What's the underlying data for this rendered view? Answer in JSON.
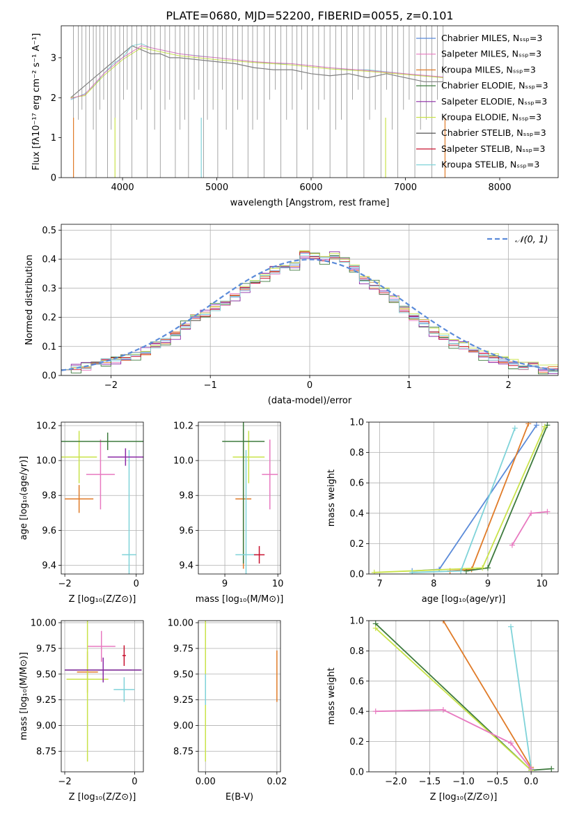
{
  "figure_title": "PLATE=0680, MJD=52200, FIBERID=0055, z=0.101",
  "chart_data": [
    {
      "type": "line",
      "id": "spectrum",
      "title": "PLATE=0680, MJD=52200, FIBERID=0055, z=0.101",
      "xlabel": "wavelength [Angstrom, rest frame]",
      "ylabel": "Flux [fλ10⁻¹⁷ erg cm⁻² s⁻¹ A⁻¹]",
      "xlim": [
        3350,
        8620
      ],
      "ylim": [
        0,
        3.8
      ],
      "xticks": [
        4000,
        5000,
        6000,
        7000,
        8000
      ],
      "yticks": [
        0,
        1,
        2,
        3
      ],
      "grid": false,
      "legend_position": "right",
      "legend": [
        {
          "label": "Chabrier MILES, Nₛₛₚ=3",
          "color": "#5b8bd9"
        },
        {
          "label": "Salpeter MILES, Nₛₛₚ=3",
          "color": "#e879c0"
        },
        {
          "label": "Kroupa MILES, Nₛₛₚ=3",
          "color": "#e07b28"
        },
        {
          "label": "Chabrier ELODIE, Nₛₛₚ=3",
          "color": "#3d7a3d"
        },
        {
          "label": "Salpeter ELODIE, Nₛₛₚ=3",
          "color": "#8b2aa6"
        },
        {
          "label": "Kroupa ELODIE, Nₛₛₚ=3",
          "color": "#c9e34a"
        },
        {
          "label": "Chabrier STELIB, Nₛₛₚ=3",
          "color": "#404040"
        },
        {
          "label": "Salpeter STELIB, Nₛₛₚ=3",
          "color": "#c8102e"
        },
        {
          "label": "Kroupa STELIB, Nₛₛₚ=3",
          "color": "#7fd3d9"
        }
      ],
      "series": [
        {
          "color": "#808080",
          "x": [
            3450,
            3500,
            3600,
            3700,
            3800,
            3900,
            4000,
            4100,
            4200,
            4300,
            4400,
            4500,
            4600,
            4800,
            5000,
            5200,
            5400,
            5600,
            5800,
            6000,
            6200,
            6400,
            6600,
            6800,
            7000,
            7200,
            7400
          ],
          "y": [
            2.0,
            2.1,
            2.3,
            2.5,
            2.7,
            2.9,
            3.1,
            3.3,
            3.2,
            3.1,
            3.1,
            3.0,
            3.0,
            2.95,
            2.9,
            2.85,
            2.75,
            2.7,
            2.7,
            2.6,
            2.55,
            2.6,
            2.5,
            2.6,
            2.5,
            2.4,
            2.4
          ]
        },
        {
          "color": "#7fd3d9",
          "x": [
            3450,
            3500,
            3600,
            3700,
            3800,
            3900,
            4000,
            4100,
            4200,
            4300,
            4400,
            4500,
            4600,
            4800,
            5000,
            5200,
            5400,
            5600,
            5800,
            6000,
            6200,
            6400,
            6600,
            6800,
            7000,
            7200,
            7400
          ],
          "y": [
            1.95,
            2.0,
            2.1,
            2.3,
            2.6,
            2.85,
            3.0,
            3.3,
            3.35,
            3.25,
            3.2,
            3.15,
            3.1,
            3.05,
            3.0,
            2.95,
            2.9,
            2.85,
            2.85,
            2.8,
            2.75,
            2.7,
            2.7,
            2.65,
            2.6,
            2.55,
            2.5
          ]
        },
        {
          "color": "#c9e34a",
          "x": [
            3450,
            3600,
            3800,
            4000,
            4200,
            4400,
            4600,
            4800,
            5000,
            5400,
            5800,
            6200,
            6600,
            7000,
            7400
          ],
          "y": [
            2.0,
            2.05,
            2.55,
            2.95,
            3.25,
            3.15,
            3.05,
            3.0,
            2.95,
            2.88,
            2.82,
            2.72,
            2.66,
            2.58,
            2.5
          ]
        },
        {
          "color": "#e879c0",
          "x": [
            3450,
            3600,
            3800,
            4000,
            4200,
            4400,
            4600,
            4800,
            5000,
            5400,
            5800,
            6200,
            6600,
            7000,
            7400
          ],
          "y": [
            1.98,
            2.08,
            2.6,
            3.0,
            3.3,
            3.2,
            3.1,
            3.04,
            3.0,
            2.9,
            2.85,
            2.75,
            2.68,
            2.6,
            2.52
          ]
        }
      ]
    },
    {
      "type": "line",
      "id": "residuals",
      "xlabel": "(data-model)/error",
      "ylabel": "Normed distribution",
      "xlim": [
        -2.5,
        2.5
      ],
      "ylim": [
        0,
        0.52
      ],
      "xticks": [
        -2,
        -1,
        0,
        1,
        2
      ],
      "yticks": [
        0.0,
        0.1,
        0.2,
        0.3,
        0.4,
        0.5
      ],
      "grid": true,
      "legend_position": "top-right",
      "legend": [
        {
          "label": "𝒩(0, 1)",
          "color": "#5b8bd9",
          "style": "dashed"
        }
      ],
      "bin_edges_from": -2.5,
      "bin_width": 0.1,
      "histogram_hist_colors": [
        "#5b8bd9",
        "#e879c0",
        "#e07b28",
        "#3d7a3d",
        "#8b2aa6",
        "#c9e34a",
        "#c8102e",
        "#7fd3d9"
      ],
      "histogram_values": [
        0.02,
        0.025,
        0.03,
        0.04,
        0.05,
        0.055,
        0.06,
        0.07,
        0.08,
        0.1,
        0.12,
        0.14,
        0.17,
        0.2,
        0.21,
        0.23,
        0.25,
        0.27,
        0.3,
        0.32,
        0.34,
        0.36,
        0.37,
        0.38,
        0.42,
        0.41,
        0.4,
        0.41,
        0.39,
        0.37,
        0.33,
        0.31,
        0.29,
        0.26,
        0.22,
        0.2,
        0.18,
        0.15,
        0.13,
        0.11,
        0.1,
        0.08,
        0.07,
        0.06,
        0.05,
        0.04,
        0.03,
        0.03,
        0.02,
        0.02
      ]
    },
    {
      "type": "scatter",
      "id": "age-vs-z",
      "xlabel": "Z [log₁₀(Z/Z⊙)]",
      "ylabel": "age  [log₁₀(age/yr)]",
      "xlim": [
        -2.1,
        0.2
      ],
      "ylim": [
        9.35,
        10.22
      ],
      "xticks": [
        -2,
        0
      ],
      "yticks": [
        9.4,
        9.6,
        9.8,
        10.0,
        10.2
      ],
      "grid": true,
      "points": [
        {
          "x": -1.0,
          "y": 9.92,
          "xerr": 0.4,
          "yerr": 0.2,
          "color": "#e879c0"
        },
        {
          "x": -1.6,
          "y": 9.78,
          "xerr": 0.4,
          "yerr": 0.08,
          "color": "#e07b28"
        },
        {
          "x": -1.6,
          "y": 10.02,
          "xerr": 0.5,
          "yerr": 0.15,
          "color": "#c9e34a"
        },
        {
          "x": -0.8,
          "y": 10.11,
          "xerr": 1.3,
          "yerr": 0.05,
          "color": "#3d7a3d"
        },
        {
          "x": -0.2,
          "y": 9.46,
          "xerr": 0.2,
          "yerr": 0.6,
          "color": "#7fd3d9"
        },
        {
          "x": -0.3,
          "y": 10.02,
          "xerr": 0.5,
          "yerr": 0.05,
          "color": "#8b2aa6"
        }
      ]
    },
    {
      "type": "scatter",
      "id": "age-vs-mass",
      "xlabel": "mass [log₁₀(M/M⊙)]",
      "xlim": [
        8.5,
        10.05
      ],
      "ylim": [
        9.35,
        10.22
      ],
      "xticks": [
        9,
        10
      ],
      "yticks": [
        9.4,
        9.6,
        9.8,
        10.0,
        10.2
      ],
      "grid": true,
      "points": [
        {
          "x": 9.85,
          "y": 9.92,
          "xerr": 0.15,
          "yerr": 0.2,
          "color": "#e879c0"
        },
        {
          "x": 9.35,
          "y": 9.78,
          "xerr": 0.15,
          "yerr": 0.4,
          "color": "#e07b28"
        },
        {
          "x": 9.45,
          "y": 10.02,
          "xerr": 0.3,
          "yerr": 0.15,
          "color": "#c9e34a"
        },
        {
          "x": 9.35,
          "y": 10.11,
          "xerr": 0.4,
          "yerr": 0.7,
          "color": "#3d7a3d"
        },
        {
          "x": 9.4,
          "y": 9.46,
          "xerr": 0.2,
          "yerr": 0.6,
          "color": "#7fd3d9"
        },
        {
          "x": 9.65,
          "y": 9.46,
          "xerr": 0.1,
          "yerr": 0.05,
          "color": "#c8102e"
        }
      ]
    },
    {
      "type": "line",
      "id": "mass-weight-vs-age",
      "xlabel": "age  [log₁₀(age/yr)]",
      "ylabel": "mass weight",
      "xlim": [
        6.8,
        10.3
      ],
      "ylim": [
        0,
        1
      ],
      "xticks": [
        7,
        8,
        9,
        10
      ],
      "yticks": [
        0.0,
        0.2,
        0.4,
        0.6,
        0.8,
        1.0
      ],
      "grid": true,
      "series": [
        {
          "color": "#5b8bd9",
          "x": [
            7.6,
            8.1,
            9.9
          ],
          "y": [
            0.02,
            0.03,
            0.98
          ]
        },
        {
          "color": "#e07b28",
          "x": [
            8.3,
            8.7,
            9.75
          ],
          "y": [
            0.02,
            0.03,
            0.99
          ]
        },
        {
          "color": "#3d7a3d",
          "x": [
            8.6,
            9.0,
            10.1
          ],
          "y": [
            0.02,
            0.04,
            0.98
          ]
        },
        {
          "color": "#c9e34a",
          "x": [
            6.9,
            8.9,
            10.05
          ],
          "y": [
            0.01,
            0.04,
            0.97
          ]
        },
        {
          "color": "#7fd3d9",
          "x": [
            7.6,
            8.5,
            9.5
          ],
          "y": [
            0.01,
            0.02,
            0.96
          ]
        },
        {
          "color": "#e879c0",
          "x": [
            9.45,
            9.8,
            10.1
          ],
          "y": [
            0.19,
            0.4,
            0.41
          ]
        }
      ]
    },
    {
      "type": "scatter",
      "id": "mass-vs-z",
      "xlabel": "Z [log₁₀(Z/Z⊙)]",
      "ylabel": "mass [log₁₀(M/M⊙)]",
      "xlim": [
        -2.1,
        0.25
      ],
      "ylim": [
        8.55,
        10.02
      ],
      "xticks": [
        -2,
        0
      ],
      "yticks": [
        8.75,
        9.0,
        9.25,
        9.5,
        9.75,
        10.0
      ],
      "grid": true,
      "points": [
        {
          "x": -0.95,
          "y": 9.77,
          "xerr": 0.4,
          "yerr": 0.15,
          "color": "#e879c0"
        },
        {
          "x": -1.35,
          "y": 9.52,
          "xerr": 0.3,
          "yerr": 0.2,
          "color": "#e07b28"
        },
        {
          "x": -1.35,
          "y": 9.45,
          "xerr": 0.6,
          "yerr": 0.8,
          "color": "#c9e34a"
        },
        {
          "x": -0.9,
          "y": 9.54,
          "xerr": 1.1,
          "yerr": 0.12,
          "color": "#3d7a3d"
        },
        {
          "x": -0.9,
          "y": 9.54,
          "xerr": 1.1,
          "yerr": 0.12,
          "color": "#8b2aa6"
        },
        {
          "x": -0.3,
          "y": 9.35,
          "xerr": 0.3,
          "yerr": 0.12,
          "color": "#7fd3d9"
        },
        {
          "x": -0.3,
          "y": 9.68,
          "xerr": 0.05,
          "yerr": 0.1,
          "color": "#c8102e"
        }
      ]
    },
    {
      "type": "scatter",
      "id": "mass-vs-ebv",
      "xlabel": "E(B-V)",
      "xlim": [
        -0.002,
        0.021
      ],
      "ylim": [
        8.55,
        10.02
      ],
      "xticks": [
        0.0,
        0.02
      ],
      "yticks": [
        8.75,
        9.0,
        9.25,
        9.5,
        9.75,
        10.0
      ],
      "grid": true,
      "points": [
        {
          "x": 0.0,
          "y": 9.77,
          "xerr": 0,
          "yerr": 0.2,
          "color": "#e879c0"
        },
        {
          "x": 0.0,
          "y": 9.45,
          "xerr": 0,
          "yerr": 0.8,
          "color": "#c9e34a"
        },
        {
          "x": 0.0,
          "y": 9.35,
          "xerr": 0,
          "yerr": 0.15,
          "color": "#7fd3d9"
        },
        {
          "x": 0.02,
          "y": 9.48,
          "xerr": 0,
          "yerr": 0.25,
          "color": "#e07b28"
        }
      ]
    },
    {
      "type": "line",
      "id": "mass-weight-vs-z",
      "xlabel": "Z [log₁₀(Z/Z⊙)]",
      "ylabel": "mass weight",
      "xlim": [
        -2.4,
        0.4
      ],
      "ylim": [
        0,
        1
      ],
      "xticks": [
        -2.0,
        -1.5,
        -1.0,
        -0.5,
        0.0
      ],
      "yticks": [
        0.0,
        0.2,
        0.4,
        0.6,
        0.8,
        1.0
      ],
      "grid": true,
      "series": [
        {
          "color": "#e07b28",
          "x": [
            -1.3,
            0.0
          ],
          "y": [
            1.0,
            0.03
          ]
        },
        {
          "color": "#3d7a3d",
          "x": [
            -2.3,
            0.0,
            0.3
          ],
          "y": [
            0.98,
            0.01,
            0.02
          ]
        },
        {
          "color": "#c9e34a",
          "x": [
            -2.3,
            0.0
          ],
          "y": [
            0.95,
            0.01
          ]
        },
        {
          "color": "#7fd3d9",
          "x": [
            -0.3,
            0.0
          ],
          "y": [
            0.96,
            0.02
          ]
        },
        {
          "color": "#e879c0",
          "x": [
            -2.3,
            -1.3,
            -0.3,
            0.0
          ],
          "y": [
            0.4,
            0.41,
            0.19,
            0.02
          ]
        }
      ]
    }
  ]
}
